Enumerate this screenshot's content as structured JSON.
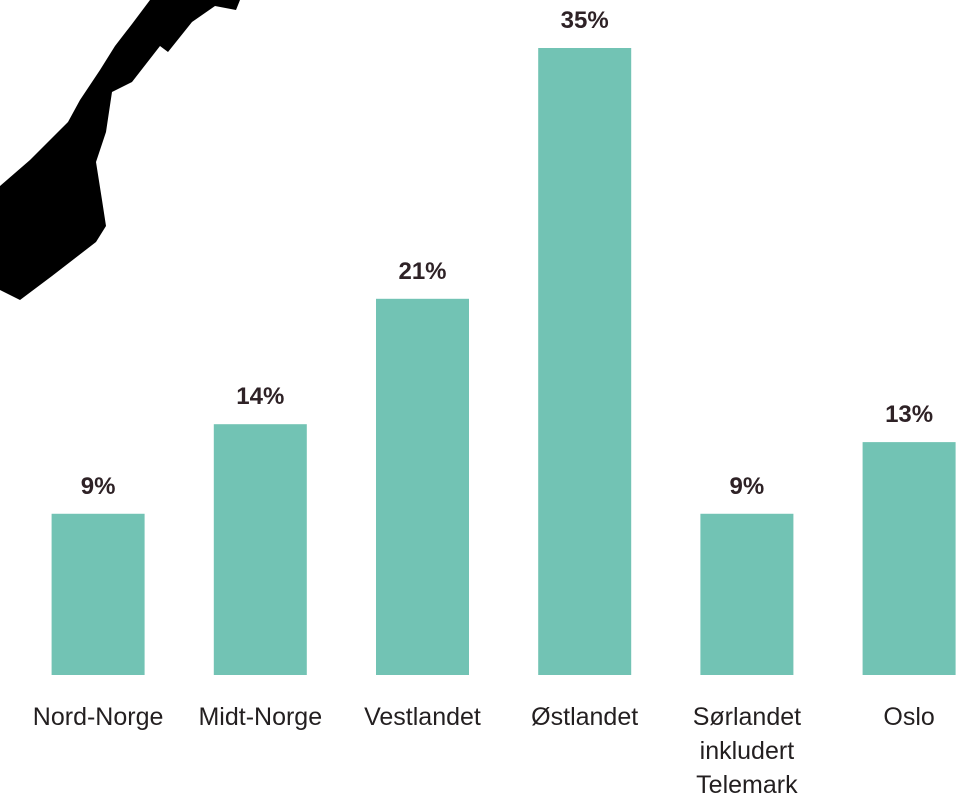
{
  "chart_data": {
    "type": "bar",
    "categories": [
      "Nord-Norge",
      "Midt-Norge",
      "Vestlandet",
      "Østlandet",
      "Sørlandet inkludert Telemark",
      "Oslo"
    ],
    "values": [
      9,
      14,
      21,
      35,
      9,
      13
    ],
    "value_labels": [
      "9%",
      "14%",
      "21%",
      "35%",
      "9%",
      "13%"
    ],
    "color": "#72c3b4"
  }
}
